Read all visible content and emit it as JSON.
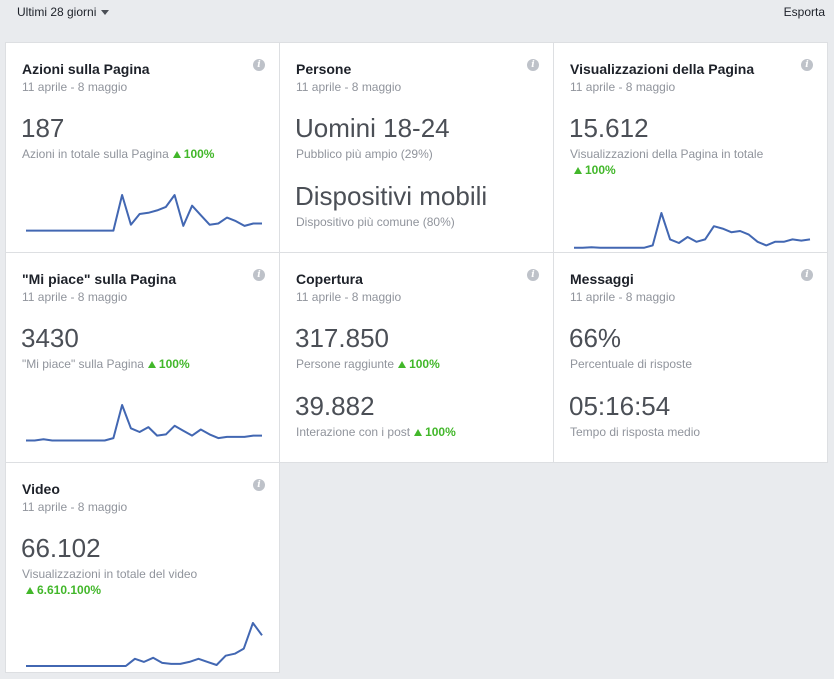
{
  "toolbar": {
    "range_label": "Ultimi 28 giorni",
    "export_label": "Esporta"
  },
  "colors": {
    "background": "#e9ebee",
    "line": "#4267b2",
    "increase": "#42b72a",
    "muted_text": "#90949c"
  },
  "cards": {
    "azioni": {
      "title": "Azioni sulla Pagina",
      "date": "11 aprile - 8 maggio",
      "value": "187",
      "label": "Azioni in totale sulla Pagina",
      "change": "100%",
      "spark": [
        2,
        2,
        2,
        2,
        2,
        2,
        2,
        2,
        2,
        2,
        2,
        32,
        7,
        16,
        17,
        19,
        22,
        32,
        6,
        23,
        15,
        7,
        8,
        13,
        10,
        6,
        8,
        8
      ]
    },
    "persone": {
      "title": "Persone",
      "date": "11 aprile - 8 maggio",
      "value1": "Uomini 18-24",
      "label1": "Pubblico più ampio (29%)",
      "value2": "Dispositivi mobili",
      "label2": "Dispositivo più comune (80%)"
    },
    "visualizzazioni": {
      "title": "Visualizzazioni della Pagina",
      "date": "11 aprile - 8 maggio",
      "value": "15.612",
      "label": "Visualizzazioni della Pagina in totale",
      "change": "100%",
      "spark": [
        1,
        1,
        1.5,
        1,
        1,
        1,
        1,
        1,
        1,
        3,
        30,
        8,
        5,
        10,
        6,
        8,
        19,
        17,
        14,
        15,
        12,
        6,
        3,
        6,
        6,
        8,
        7,
        8
      ]
    },
    "mipiace": {
      "title": "\"Mi piace\" sulla Pagina",
      "date": "11 aprile - 8 maggio",
      "value": "3430",
      "label": "\"Mi piace\" sulla Pagina",
      "change": "100%",
      "spark": [
        2,
        2,
        3,
        2,
        2,
        2,
        2,
        2,
        2,
        2,
        4,
        31,
        12,
        9,
        13,
        6,
        7,
        14,
        10,
        6,
        11,
        7,
        4,
        5,
        5,
        5,
        6,
        6
      ]
    },
    "copertura": {
      "title": "Copertura",
      "date": "11 aprile - 8 maggio",
      "value1": "317.850",
      "label1": "Persone raggiunte",
      "change1": "100%",
      "value2": "39.882",
      "label2": "Interazione con i post",
      "change2": "100%"
    },
    "messaggi": {
      "title": "Messaggi",
      "date": "11 aprile - 8 maggio",
      "value1": "66%",
      "label1": "Percentuale di risposte",
      "value2": "05:16:54",
      "label2": "Tempo di risposta medio"
    },
    "video": {
      "title": "Video",
      "date": "11 aprile - 8 maggio",
      "value": "66.102",
      "label": "Visualizzazioni in totale del video",
      "change": "6.610.100%",
      "spark": [
        1,
        1,
        1,
        1,
        1,
        1,
        1,
        1,
        1,
        1,
        1,
        1,
        8,
        5,
        9,
        4,
        3,
        3,
        5,
        8,
        5,
        2,
        11,
        13,
        18,
        43,
        31
      ]
    }
  }
}
